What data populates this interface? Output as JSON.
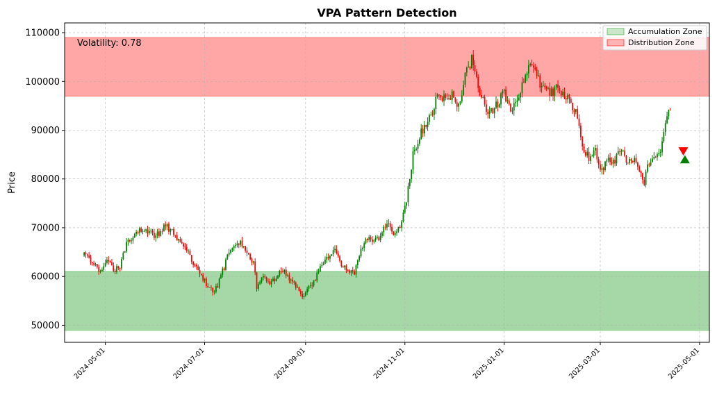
{
  "chart_data": {
    "type": "candlestick",
    "title": "VPA Pattern Detection",
    "xlabel": "",
    "ylabel": "Price",
    "annotation": "Volatility: 0.78",
    "ylim": [
      46500,
      112000
    ],
    "xlim": [
      "2024-04-06",
      "2025-05-07"
    ],
    "yticks": [
      50000,
      60000,
      70000,
      80000,
      90000,
      100000,
      110000
    ],
    "xticks": [
      "2024-05-01",
      "2024-07-01",
      "2024-09-01",
      "2024-11-01",
      "2025-01-01",
      "2025-03-01",
      "2025-05-01"
    ],
    "grid": true,
    "legend_position": "top-right",
    "legend": [
      {
        "label": "Accumulation Zone",
        "color": "#2ca02c"
      },
      {
        "label": "Distribution Zone",
        "color": "#ff0000"
      }
    ],
    "zones": [
      {
        "name": "Accumulation Zone",
        "y_from": 49000,
        "y_to": 61000,
        "color": "#4caf50"
      },
      {
        "name": "Distribution Zone",
        "y_from": 97000,
        "y_to": 109000,
        "color": "#ff4d4d"
      }
    ],
    "start_date": "2024-04-18",
    "close_series": [
      [
        0,
        65000
      ],
      [
        6,
        63000
      ],
      [
        10,
        61000
      ],
      [
        14,
        63500
      ],
      [
        18,
        61000
      ],
      [
        22,
        62000
      ],
      [
        26,
        66500
      ],
      [
        30,
        68500
      ],
      [
        34,
        70000
      ],
      [
        38,
        69500
      ],
      [
        42,
        68500
      ],
      [
        46,
        69000
      ],
      [
        50,
        70500
      ],
      [
        54,
        69000
      ],
      [
        58,
        67500
      ],
      [
        62,
        66000
      ],
      [
        66,
        63500
      ],
      [
        70,
        61500
      ],
      [
        74,
        59000
      ],
      [
        78,
        57500
      ],
      [
        80,
        56500
      ],
      [
        84,
        60000
      ],
      [
        88,
        64000
      ],
      [
        92,
        66500
      ],
      [
        96,
        67500
      ],
      [
        100,
        65000
      ],
      [
        104,
        62500
      ],
      [
        106,
        58000
      ],
      [
        110,
        60500
      ],
      [
        114,
        58500
      ],
      [
        118,
        60000
      ],
      [
        122,
        61500
      ],
      [
        126,
        59000
      ],
      [
        130,
        58000
      ],
      [
        134,
        55500
      ],
      [
        138,
        57500
      ],
      [
        142,
        59500
      ],
      [
        146,
        63000
      ],
      [
        150,
        63500
      ],
      [
        154,
        65500
      ],
      [
        158,
        62500
      ],
      [
        162,
        61500
      ],
      [
        166,
        61000
      ],
      [
        170,
        65500
      ],
      [
        174,
        68000
      ],
      [
        178,
        67500
      ],
      [
        182,
        68000
      ],
      [
        186,
        71000
      ],
      [
        190,
        68500
      ],
      [
        194,
        70000
      ],
      [
        198,
        76000
      ],
      [
        202,
        85000
      ],
      [
        206,
        89000
      ],
      [
        210,
        91000
      ],
      [
        214,
        94000
      ],
      [
        218,
        98000
      ],
      [
        222,
        96000
      ],
      [
        226,
        97500
      ],
      [
        230,
        95000
      ],
      [
        234,
        101000
      ],
      [
        238,
        104500
      ],
      [
        242,
        99000
      ],
      [
        246,
        95000
      ],
      [
        250,
        93500
      ],
      [
        254,
        95500
      ],
      [
        258,
        97500
      ],
      [
        262,
        94000
      ],
      [
        266,
        96500
      ],
      [
        270,
        100000
      ],
      [
        274,
        104500
      ],
      [
        278,
        101000
      ],
      [
        282,
        98500
      ],
      [
        286,
        97500
      ],
      [
        290,
        98500
      ],
      [
        294,
        97500
      ],
      [
        298,
        96500
      ],
      [
        302,
        93500
      ],
      [
        306,
        87000
      ],
      [
        310,
        84000
      ],
      [
        314,
        86000
      ],
      [
        318,
        81500
      ],
      [
        322,
        84000
      ],
      [
        326,
        83500
      ],
      [
        330,
        86500
      ],
      [
        334,
        83000
      ],
      [
        338,
        84000
      ],
      [
        342,
        81000
      ],
      [
        344,
        79000
      ],
      [
        346,
        83000
      ],
      [
        350,
        85000
      ],
      [
        354,
        86000
      ],
      [
        358,
        93000
      ],
      [
        360,
        93500
      ]
    ],
    "markers": [
      {
        "date": "2025-04-21",
        "price": 85700,
        "shape": "triangle-down",
        "color": "#ff0000"
      },
      {
        "date": "2025-04-22",
        "price": 84000,
        "shape": "triangle-up",
        "color": "#008000"
      }
    ],
    "up_color": "#008000",
    "down_color": "#ff0000"
  }
}
